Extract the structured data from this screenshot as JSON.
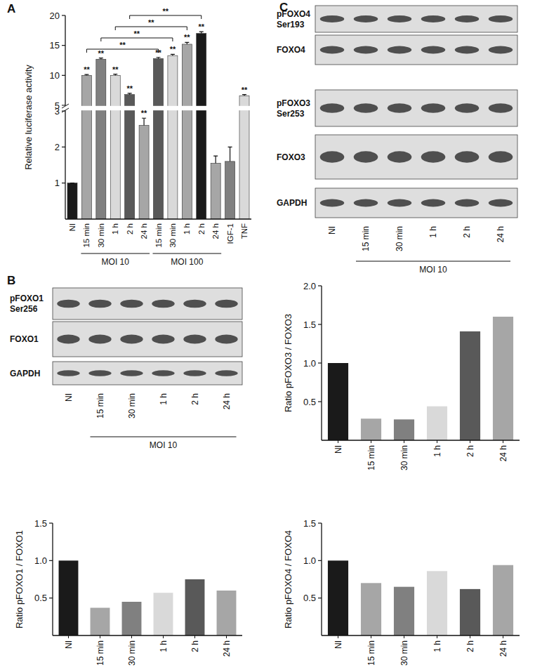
{
  "panel_labels": [
    "A",
    "B",
    "C"
  ],
  "chart_data": [
    {
      "type": "bar",
      "y_label": "Relative luciferase activity",
      "categories": [
        "NI",
        "15 min",
        "30 min",
        "1 h",
        "2 h",
        "24 h",
        "15 min",
        "30 min",
        "1 h",
        "2 h",
        "24 h",
        "IGF-1",
        "TNF"
      ],
      "values": [
        1,
        10,
        12.7,
        10,
        6.8,
        2.6,
        12.8,
        13.3,
        15.2,
        17,
        1.55,
        1.6,
        6.6
      ],
      "errors": [
        0,
        0.15,
        0.2,
        0.2,
        0.2,
        0.2,
        0.2,
        0.2,
        0.3,
        0.3,
        0.2,
        0.4,
        0.2
      ],
      "colors": [
        "#1a1a1a",
        "#a6a6a6",
        "#808080",
        "#d9d9d9",
        "#595959",
        "#a6a6a6",
        "#595959",
        "#d9d9d9",
        "#a6a6a6",
        "#1a1a1a",
        "#a6a6a6",
        "#808080",
        "#d9d9d9"
      ],
      "significance": [
        null,
        "**",
        "**",
        "**",
        "**",
        "**",
        "**",
        "**",
        "**",
        "**",
        null,
        null,
        "**"
      ],
      "groups": [
        {
          "label": "MOI 10",
          "from": 1,
          "to": 5
        },
        {
          "label": "MOI 100",
          "from": 6,
          "to": 10
        }
      ],
      "comparisons": [
        {
          "from": 1,
          "to": 6,
          "label": "**"
        },
        {
          "from": 2,
          "to": 7,
          "label": "**"
        },
        {
          "from": 3,
          "to": 8,
          "label": "**"
        },
        {
          "from": 4,
          "to": 9,
          "label": "**"
        }
      ],
      "ylim": [
        0,
        20
      ],
      "axis_break": [
        3,
        5
      ],
      "yticks": [
        1,
        2,
        3,
        5,
        10,
        15,
        20
      ]
    },
    {
      "type": "bar",
      "y_label": "Ratio pFOXO1 / FOXO1",
      "categories": [
        "NI",
        "15 min",
        "30 min",
        "1 h",
        "2 h",
        "24 h"
      ],
      "values": [
        1.0,
        0.37,
        0.45,
        0.57,
        0.75,
        0.6
      ],
      "colors": [
        "#1a1a1a",
        "#a6a6a6",
        "#808080",
        "#d9d9d9",
        "#595959",
        "#a6a6a6"
      ],
      "ylim": [
        0,
        1.5
      ],
      "yticks": [
        0.5,
        {
          "value": 1,
          "label": "1.0"
        },
        1.5
      ]
    },
    {
      "type": "bar",
      "y_label": "Ratio pFOXO3 / FOXO3",
      "categories": [
        "NI",
        "15 min",
        "30 min",
        "1 h",
        "2 h",
        "24 h"
      ],
      "values": [
        1.0,
        0.28,
        0.27,
        0.44,
        1.41,
        1.6
      ],
      "colors": [
        "#1a1a1a",
        "#a6a6a6",
        "#808080",
        "#d9d9d9",
        "#595959",
        "#a6a6a6"
      ],
      "ylim": [
        0,
        2
      ],
      "yticks": [
        0.5,
        {
          "value": 1,
          "label": "1.0"
        },
        1.5,
        {
          "value": 2,
          "label": "2.0"
        }
      ]
    },
    {
      "type": "bar",
      "y_label": "Ratio pFOXO4 / FOXO4",
      "categories": [
        "NI",
        "15 min",
        "30 min",
        "1 h",
        "2 h",
        "24 h"
      ],
      "values": [
        1.0,
        0.7,
        0.65,
        0.86,
        0.62,
        0.94
      ],
      "colors": [
        "#1a1a1a",
        "#a6a6a6",
        "#808080",
        "#d9d9d9",
        "#595959",
        "#a6a6a6"
      ],
      "ylim": [
        0,
        1.5
      ],
      "yticks": [
        0.5,
        {
          "value": 1,
          "label": "1.0"
        },
        1.5
      ]
    }
  ],
  "blots": [
    {
      "rows": [
        [
          "pFOXO1",
          "Ser256"
        ],
        [
          "FOXO1"
        ],
        [
          "GAPDH"
        ]
      ],
      "lanes": [
        "NI",
        "15 min",
        "30 min",
        "1 h",
        "2 h",
        "24 h"
      ],
      "group": {
        "label": "MOI 10",
        "from": 1,
        "to": 5
      }
    },
    {
      "rows": [
        [
          "pFOXO4",
          "Ser193"
        ],
        [
          "FOXO4"
        ],
        [
          "pFOXO3",
          "Ser253"
        ],
        [
          "FOXO3"
        ],
        [
          "GAPDH"
        ]
      ],
      "lanes": [
        "NI",
        "15 min",
        "30 min",
        "1 h",
        "2 h",
        "24 h"
      ],
      "group": {
        "label": "MOI 10",
        "from": 1,
        "to": 5
      }
    }
  ]
}
